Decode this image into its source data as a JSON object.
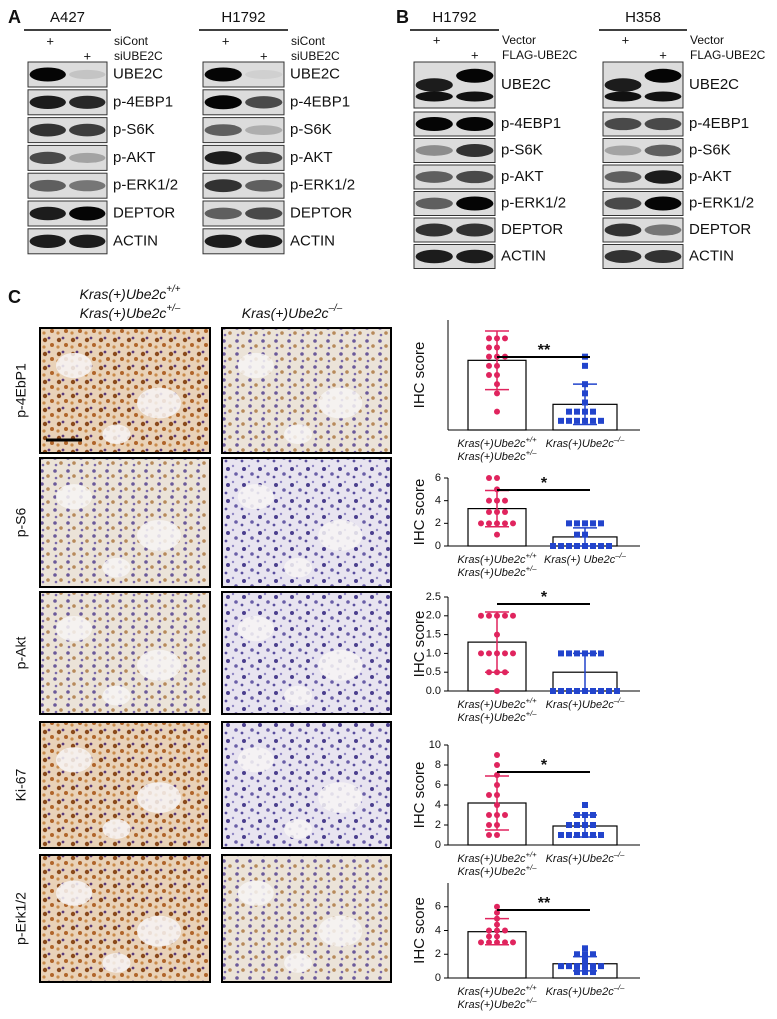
{
  "panel_a": {
    "label": "A",
    "conditions": [
      "siCont",
      "siUBE2C"
    ],
    "blots": [
      {
        "cell": "A427",
        "plus": [
          "+",
          "+"
        ],
        "proteins": [
          "UBE2C",
          "p-4EBP1",
          "p-S6K",
          "p-AKT",
          "p-ERK1/2",
          "DEPTOR",
          "ACTIN"
        ]
      },
      {
        "cell": "H1792",
        "plus": [
          "+",
          "+"
        ],
        "proteins": [
          "UBE2C",
          "p-4EBP1",
          "p-S6K",
          "p-AKT",
          "p-ERK1/2",
          "DEPTOR",
          "ACTIN"
        ]
      }
    ]
  },
  "panel_b": {
    "label": "B",
    "conditions": [
      "Vector",
      "FLAG-UBE2C"
    ],
    "blots": [
      {
        "cell": "H1792",
        "plus": [
          "+",
          "+"
        ],
        "proteins": [
          "UBE2C",
          "p-4EBP1",
          "p-S6K",
          "p-AKT",
          "p-ERK1/2",
          "DEPTOR",
          "ACTIN"
        ]
      },
      {
        "cell": "H358",
        "plus": [
          "+",
          "+"
        ],
        "proteins": [
          "UBE2C",
          "p-4EBP1",
          "p-S6K",
          "p-AKT",
          "p-ERK1/2",
          "DEPTOR",
          "ACTIN"
        ]
      }
    ]
  },
  "panel_c": {
    "label": "C",
    "columns": [
      [
        {
          "base": "Kras(+)Ube2c",
          "sup": "+/+"
        },
        {
          "base": "Kras(+)Ube2c",
          "sup": "+/–"
        }
      ],
      [
        {
          "base": "Kras(+)Ube2c",
          "sup": "–/–"
        }
      ]
    ],
    "rows": [
      "p-4EbP1",
      "p-S6",
      "p-Akt",
      "Ki-67",
      "p-Erk1/2"
    ]
  },
  "chart_data": [
    {
      "type": "bar",
      "y_label": "IHC score",
      "significance": "**",
      "ylim": [
        0,
        12
      ],
      "categories": [
        [
          {
            "base": "Kras(+)Ube2c",
            "sup": "+/+"
          },
          {
            "base": "Kras(+)Ube2c",
            "sup": "+/–"
          }
        ],
        [
          {
            "base": "Kras(+)Ube2c",
            "sup": "–/–"
          }
        ]
      ],
      "colors": [
        "#e0245e",
        "#2244cc"
      ],
      "values": [
        7.6,
        2.8
      ],
      "errors": [
        3.2,
        2.2
      ],
      "points": [
        [
          10,
          10,
          10,
          9,
          9,
          8,
          8,
          8,
          7,
          7,
          6,
          6,
          5,
          4,
          2
        ],
        [
          8,
          7,
          5,
          4,
          3,
          2,
          2,
          2,
          2,
          1,
          1,
          1,
          1,
          1,
          1
        ]
      ]
    },
    {
      "type": "bar",
      "y_label": "IHC score",
      "significance": "*",
      "ylim": [
        0,
        6
      ],
      "yticks": [
        0,
        2,
        4,
        6
      ],
      "categories": [
        [
          {
            "base": "Kras(+)Ube2c",
            "sup": "+/+"
          },
          {
            "base": "Kras(+)Ube2c",
            "sup": "+/–"
          }
        ],
        [
          {
            "base": "Kras(+) Ube2c",
            "sup": "–/–"
          }
        ]
      ],
      "colors": [
        "#e0245e",
        "#2244cc"
      ],
      "values": [
        3.3,
        0.8
      ],
      "errors": [
        1.6,
        0.8
      ],
      "points": [
        [
          6,
          6,
          5,
          4,
          4,
          4,
          3,
          3,
          3,
          2,
          2,
          2,
          2,
          2,
          1
        ],
        [
          2,
          2,
          2,
          2,
          2,
          1,
          1,
          0,
          0,
          0,
          0,
          0,
          0,
          0,
          0
        ]
      ]
    },
    {
      "type": "bar",
      "y_label": "IHC score",
      "significance": "*",
      "ylim": [
        0,
        2.5
      ],
      "yticks": [
        {
          "value": 0,
          "label": "0.0"
        },
        0.5,
        {
          "value": 1,
          "label": "1.0"
        },
        1.5,
        {
          "value": 2,
          "label": "2.0"
        },
        2.5
      ],
      "categories": [
        [
          {
            "base": "Kras(+)Ube2c",
            "sup": "+/+"
          },
          {
            "base": "Kras(+)Ube2c",
            "sup": "+/–"
          }
        ],
        [
          {
            "base": "Kras(+)Ube2c",
            "sup": "–/–"
          }
        ]
      ],
      "colors": [
        "#e0245e",
        "#2244cc"
      ],
      "values": [
        1.3,
        0.5
      ],
      "errors": [
        0.8,
        0.5
      ],
      "points": [
        [
          2,
          2,
          2,
          2,
          2,
          1.5,
          1,
          1,
          1,
          1,
          1,
          0.5,
          0.5,
          0.5,
          0
        ],
        [
          1,
          1,
          1,
          1,
          1,
          1,
          0,
          0,
          0,
          0,
          0,
          0,
          0,
          0,
          0
        ]
      ]
    },
    {
      "type": "bar",
      "y_label": "IHC score",
      "significance": "*",
      "ylim": [
        0,
        10
      ],
      "yticks": [
        0,
        2,
        4,
        6,
        8,
        10
      ],
      "categories": [
        [
          {
            "base": "Kras(+)Ube2c",
            "sup": "+/+"
          },
          {
            "base": "Kras(+)Ube2c",
            "sup": "+/–"
          }
        ],
        [
          {
            "base": "Kras(+)Ube2c",
            "sup": "–/–"
          }
        ]
      ],
      "colors": [
        "#e0245e",
        "#2244cc"
      ],
      "values": [
        4.2,
        1.9
      ],
      "errors": [
        2.7,
        1.1
      ],
      "points": [
        [
          9,
          8,
          7,
          6,
          5,
          5,
          4,
          3,
          3,
          3,
          2,
          2,
          1,
          1
        ],
        [
          4,
          3,
          3,
          3,
          2,
          2,
          2,
          2,
          1,
          1,
          1,
          1,
          1,
          1
        ]
      ]
    },
    {
      "type": "bar",
      "y_label": "IHC score",
      "significance": "**",
      "ylim": [
        0,
        8
      ],
      "yticks": [
        0,
        2,
        4,
        6
      ],
      "categories": [
        [
          {
            "base": "Kras(+)Ube2c",
            "sup": "+/+"
          },
          {
            "base": "Kras(+)Ube2c",
            "sup": "+/–"
          }
        ],
        [
          {
            "base": "Kras(+)Ube2c",
            "sup": "–/–"
          }
        ]
      ],
      "colors": [
        "#e0245e",
        "#2244cc"
      ],
      "values": [
        3.9,
        1.2
      ],
      "errors": [
        1.1,
        0.6
      ],
      "points": [
        [
          6,
          5.5,
          5,
          4.5,
          4,
          4,
          4,
          3.5,
          3.5,
          3,
          3,
          3,
          3,
          3
        ],
        [
          2.5,
          2,
          2,
          2,
          1.5,
          1,
          1,
          1,
          1,
          1,
          1,
          0.5,
          0.5,
          0.5
        ]
      ]
    }
  ]
}
